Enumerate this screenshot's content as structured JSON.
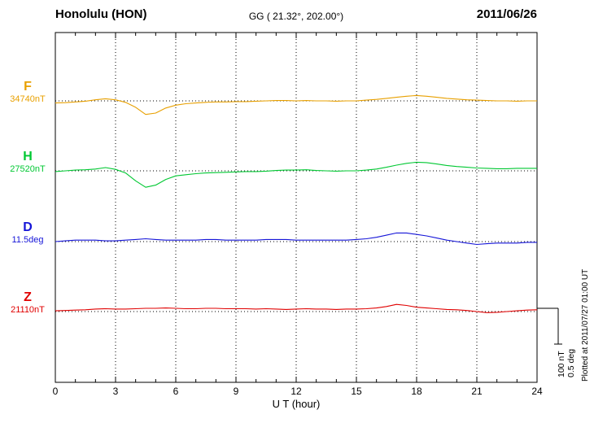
{
  "header": {
    "station": "Honolulu (HON)",
    "coords": "GG ( 21.32°, 202.00°)",
    "date": "2011/06/26"
  },
  "annotations": {
    "plotted_at": "Plotted at 2011/07/27 01:00 UT",
    "scale_nt": "100 nT",
    "scale_deg": "0.5 deg"
  },
  "chart_data": {
    "type": "line",
    "title": "Honolulu (HON) magnetogram 2011/06/26",
    "xlabel": "U T (hour)",
    "x_range": [
      0,
      24
    ],
    "x_ticks": [
      0,
      3,
      6,
      9,
      12,
      15,
      18,
      21,
      24
    ],
    "gridlines_hours": [
      3,
      6,
      9,
      12,
      15,
      18,
      21
    ],
    "grid": "dotted-vertical",
    "scale_bar": {
      "nT": 100,
      "deg": 0.5
    },
    "x_hours": [
      0,
      0.5,
      1,
      1.5,
      2,
      2.5,
      3,
      3.5,
      4,
      4.5,
      5,
      5.5,
      6,
      6.5,
      7,
      7.5,
      8,
      8.5,
      9,
      9.5,
      10,
      10.5,
      11,
      11.5,
      12,
      12.5,
      13,
      13.5,
      14,
      14.5,
      15,
      15.5,
      16,
      16.5,
      17,
      17.5,
      18,
      18.5,
      19,
      19.5,
      20,
      20.5,
      21,
      21.5,
      22,
      22.5,
      23,
      23.5,
      24
    ],
    "series": [
      {
        "id": "F",
        "label": "F",
        "baseline": "34740nT",
        "baseline_value": 34740,
        "unit": "nT",
        "color": "#e8a000",
        "offsets": [
          -6,
          -5,
          -3,
          -1,
          3,
          6,
          3,
          -4,
          -18,
          -38,
          -34,
          -20,
          -12,
          -8,
          -6,
          -4,
          -3,
          -3,
          -2,
          -2,
          -1,
          0,
          1,
          1,
          0,
          1,
          0,
          0,
          -1,
          0,
          0,
          2,
          4,
          7,
          10,
          13,
          15,
          13,
          10,
          7,
          5,
          3,
          2,
          1,
          0,
          0,
          -1,
          0,
          0
        ]
      },
      {
        "id": "H",
        "label": "H",
        "baseline": "27520nT",
        "baseline_value": 27520,
        "unit": "nT",
        "color": "#00c832",
        "offsets": [
          -2,
          0,
          2,
          3,
          5,
          9,
          4,
          -6,
          -28,
          -46,
          -40,
          -24,
          -14,
          -11,
          -8,
          -6,
          -5,
          -4,
          -3,
          -2,
          -2,
          -1,
          1,
          2,
          2,
          3,
          1,
          0,
          -1,
          0,
          0,
          2,
          5,
          10,
          16,
          21,
          24,
          23,
          19,
          15,
          12,
          10,
          8,
          7,
          6,
          6,
          7,
          7,
          7
        ]
      },
      {
        "id": "D",
        "label": "D",
        "baseline": "11.5deg",
        "baseline_value": 11.5,
        "unit": "deg",
        "color": "#1515d8",
        "offsets": [
          0,
          0.01,
          0.02,
          0.02,
          0.02,
          0.01,
          0.01,
          0.02,
          0.03,
          0.04,
          0.03,
          0.02,
          0.02,
          0.02,
          0.02,
          0.03,
          0.03,
          0.02,
          0.02,
          0.02,
          0.02,
          0.03,
          0.03,
          0.03,
          0.02,
          0.02,
          0.02,
          0.02,
          0.02,
          0.02,
          0.03,
          0.04,
          0.06,
          0.09,
          0.12,
          0.12,
          0.1,
          0.08,
          0.05,
          0.02,
          0,
          -0.02,
          -0.04,
          -0.03,
          -0.02,
          -0.02,
          -0.02,
          -0.01,
          -0.01
        ]
      },
      {
        "id": "Z",
        "label": "Z",
        "baseline": "21110nT",
        "baseline_value": 21110,
        "unit": "nT",
        "color": "#e00000",
        "offsets": [
          2,
          3,
          4,
          5,
          7,
          8,
          7,
          7,
          8,
          9,
          9,
          10,
          9,
          8,
          8,
          9,
          9,
          8,
          8,
          8,
          7,
          8,
          7,
          6,
          7,
          8,
          7,
          7,
          6,
          7,
          7,
          8,
          10,
          14,
          20,
          17,
          12,
          10,
          8,
          6,
          5,
          3,
          0,
          -3,
          -2,
          0,
          2,
          4,
          5
        ]
      }
    ]
  }
}
